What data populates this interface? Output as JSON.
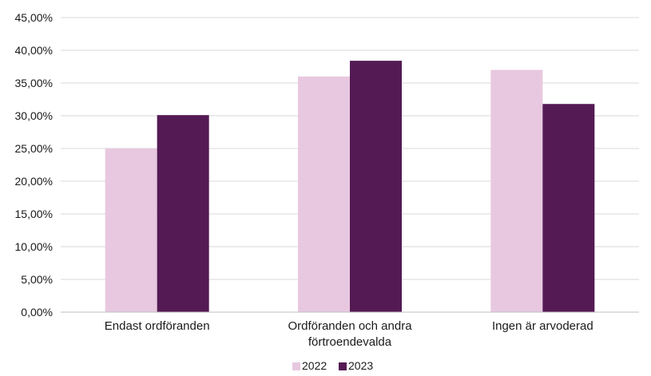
{
  "chart_data": {
    "type": "bar",
    "categories": [
      [
        "Endast ordföranden"
      ],
      [
        "Ordföranden och andra",
        "förtroendevalda"
      ],
      [
        "Ingen är arvoderad"
      ]
    ],
    "series": [
      {
        "name": "2022",
        "color": "#e8c8e0",
        "values": [
          25.0,
          36.0,
          37.0
        ]
      },
      {
        "name": "2023",
        "color": "#541a54",
        "values": [
          30.1,
          38.4,
          31.8
        ]
      }
    ],
    "y_ticks": [
      "0,00%",
      "5,00%",
      "10,00%",
      "15,00%",
      "20,00%",
      "25,00%",
      "30,00%",
      "35,00%",
      "40,00%",
      "45,00%"
    ],
    "ylim": [
      0,
      45
    ],
    "grid": true,
    "legend": "bottom-center",
    "title": "",
    "xlabel": "",
    "ylabel": ""
  }
}
